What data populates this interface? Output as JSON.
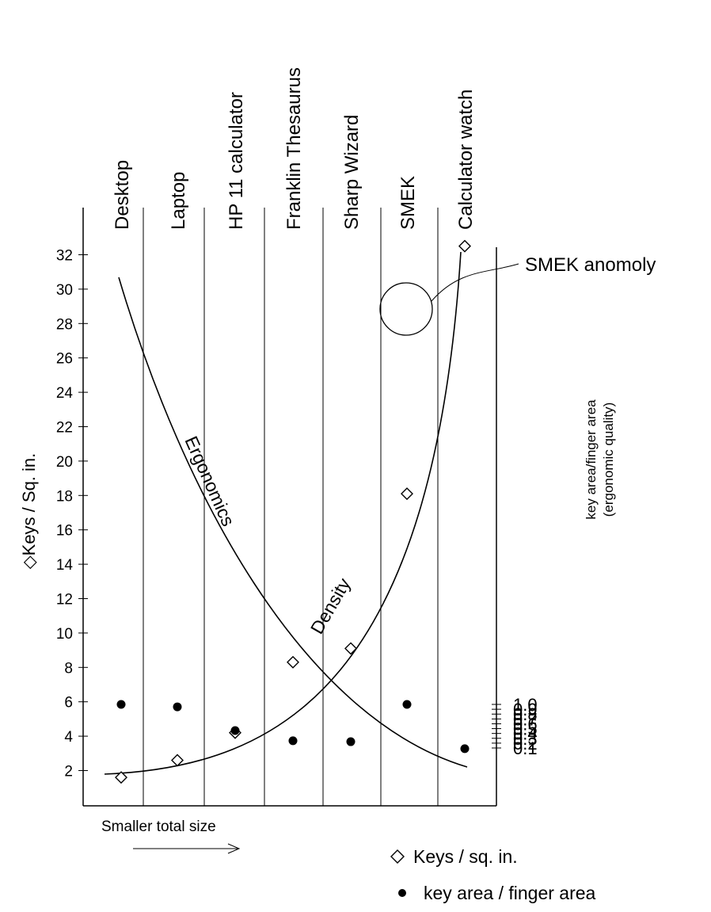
{
  "chart_data": {
    "type": "scatter",
    "categories": [
      "Desktop",
      "Laptop",
      "HP 11 calculator",
      "Franklin Thesaurus",
      "Sharp Wizard",
      "SMEK",
      "Calculator watch"
    ],
    "y_left": {
      "label": "◇Keys / Sq. in.",
      "ticks": [
        2,
        4,
        6,
        8,
        10,
        12,
        14,
        16,
        18,
        20,
        22,
        24,
        26,
        28,
        30,
        32
      ]
    },
    "y_right": {
      "label_line1": "key area/finger area",
      "label_line2": "(ergonomic quality)",
      "ticks": [
        "0.1",
        "0.2",
        "0.3",
        "0.4",
        "0.5",
        "0.6",
        "0.7",
        "0.8",
        "0.9",
        "1.0"
      ]
    },
    "series": [
      {
        "name": "Keys / sq. in.",
        "marker": "diamond",
        "axis": "left",
        "values": [
          1.6,
          2.6,
          4.2,
          8.3,
          9.1,
          18.1,
          32.5
        ]
      },
      {
        "name": "key area / finger area",
        "marker": "dot",
        "axis": "right",
        "values": [
          1.0,
          0.95,
          0.46,
          0.25,
          0.23,
          1.0,
          0.085
        ]
      }
    ],
    "curves": [
      {
        "label": "Ergonomics"
      },
      {
        "label": "Density"
      }
    ],
    "annotations": {
      "anomaly": "SMEK anomoly",
      "arrow": "Smaller total size"
    },
    "legend": {
      "diamond_label": "Keys / sq. in.",
      "dot_label": "key area / finger area"
    }
  }
}
